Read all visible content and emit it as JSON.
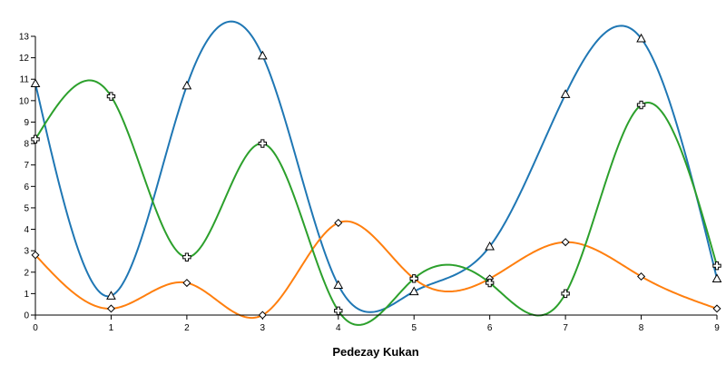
{
  "chart_data": {
    "type": "line",
    "interpolation": "smooth",
    "title": "",
    "xlabel": "Pedezay Kukan",
    "ylabel": "",
    "x": [
      0,
      1,
      2,
      3,
      4,
      5,
      6,
      7,
      8,
      9
    ],
    "xlim": [
      0,
      9
    ],
    "ylim": [
      0,
      13
    ],
    "xticks": [
      0,
      1,
      2,
      3,
      4,
      5,
      6,
      7,
      8,
      9
    ],
    "yticks": [
      0,
      1,
      2,
      3,
      4,
      5,
      6,
      7,
      8,
      9,
      10,
      11,
      12,
      13
    ],
    "grid": false,
    "legend": "none",
    "series": [
      {
        "color": "#1f77b4",
        "marker": "triangle",
        "values": [
          10.8,
          0.9,
          10.7,
          12.1,
          1.4,
          1.1,
          3.2,
          10.3,
          12.9,
          1.7
        ]
      },
      {
        "color": "#ff7f0e",
        "marker": "diamond",
        "values": [
          2.8,
          0.3,
          1.5,
          0.0,
          4.3,
          1.7,
          1.7,
          3.4,
          1.8,
          0.3
        ]
      },
      {
        "color": "#2ca02c",
        "marker": "cross",
        "values": [
          8.2,
          10.2,
          2.7,
          8.0,
          0.2,
          1.7,
          1.5,
          1.0,
          9.8,
          2.3
        ]
      }
    ]
  }
}
